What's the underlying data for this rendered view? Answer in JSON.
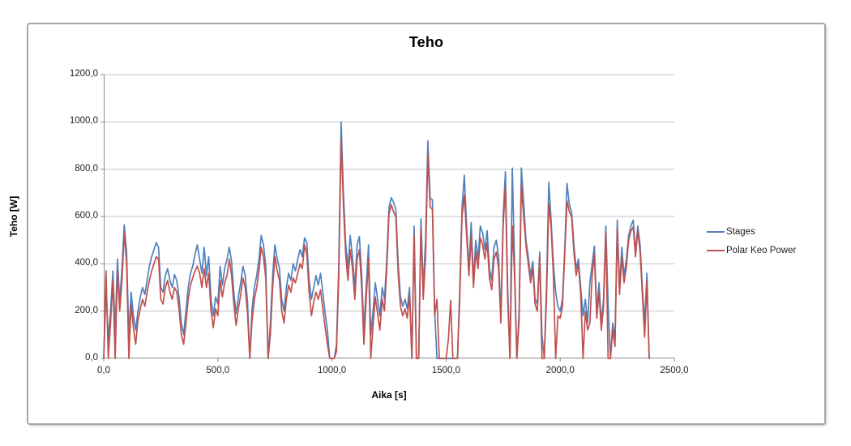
{
  "chart_data": {
    "type": "line",
    "title": "Teho",
    "xlabel": "Aika [s]",
    "ylabel": "Teho [W]",
    "xlim": [
      0,
      2500
    ],
    "ylim": [
      0,
      1200
    ],
    "grid": true,
    "legend_position": "right",
    "x_tick_labels": [
      "0,0",
      "500,0",
      "1000,0",
      "1500,0",
      "2000,0",
      "2500,0"
    ],
    "y_tick_labels": [
      "0,0",
      "200,0",
      "400,0",
      "600,0",
      "800,0",
      "1000,0",
      "1200,0"
    ],
    "x_start": 0,
    "x_step": 10,
    "series": [
      {
        "name": "Stages",
        "color": "#4F81BD",
        "values": [
          0,
          300,
          80,
          200,
          370,
          120,
          420,
          240,
          380,
          565,
          450,
          90,
          280,
          180,
          120,
          200,
          260,
          300,
          270,
          330,
          390,
          430,
          460,
          490,
          470,
          300,
          280,
          350,
          380,
          330,
          300,
          355,
          330,
          260,
          150,
          100,
          200,
          300,
          360,
          390,
          440,
          480,
          420,
          360,
          470,
          350,
          430,
          250,
          180,
          260,
          230,
          390,
          310,
          380,
          420,
          470,
          410,
          280,
          190,
          260,
          320,
          390,
          350,
          240,
          0,
          210,
          300,
          350,
          420,
          520,
          480,
          390,
          0,
          150,
          350,
          480,
          420,
          380,
          250,
          200,
          300,
          360,
          330,
          400,
          370,
          420,
          460,
          430,
          510,
          490,
          330,
          250,
          300,
          350,
          310,
          360,
          280,
          190,
          120,
          0,
          0,
          0,
          60,
          400,
          1000,
          700,
          490,
          380,
          520,
          430,
          300,
          480,
          515,
          360,
          120,
          300,
          480,
          100,
          200,
          320,
          250,
          180,
          300,
          250,
          420,
          640,
          680,
          660,
          630,
          400,
          260,
          220,
          250,
          210,
          300,
          0,
          560,
          0,
          0,
          590,
          300,
          500,
          920,
          680,
          670,
          200,
          0,
          0,
          0,
          0,
          0,
          0,
          0,
          0,
          0,
          0,
          300,
          640,
          775,
          560,
          380,
          575,
          330,
          500,
          420,
          560,
          530,
          460,
          540,
          380,
          330,
          470,
          500,
          430,
          180,
          600,
          790,
          300,
          0,
          805,
          400,
          0,
          200,
          805,
          660,
          500,
          430,
          350,
          410,
          250,
          230,
          450,
          100,
          0,
          300,
          745,
          590,
          400,
          280,
          220,
          200,
          250,
          460,
          740,
          650,
          620,
          480,
          380,
          420,
          300,
          180,
          250,
          150,
          320,
          400,
          475,
          200,
          320,
          150,
          250,
          560,
          230,
          0,
          150,
          80,
          585,
          300,
          470,
          350,
          420,
          520,
          560,
          585,
          450,
          560,
          480,
          300,
          150,
          360,
          0
        ]
      },
      {
        "name": "Polar Keo Power",
        "color": "#C0504D",
        "values": [
          0,
          370,
          0,
          150,
          330,
          0,
          370,
          200,
          330,
          530,
          400,
          0,
          230,
          130,
          60,
          160,
          210,
          250,
          220,
          280,
          330,
          370,
          400,
          430,
          420,
          250,
          230,
          300,
          330,
          280,
          250,
          300,
          280,
          210,
          100,
          60,
          150,
          250,
          310,
          340,
          370,
          390,
          360,
          300,
          380,
          300,
          360,
          200,
          130,
          210,
          180,
          330,
          260,
          320,
          350,
          420,
          350,
          230,
          140,
          210,
          270,
          340,
          300,
          190,
          0,
          160,
          250,
          300,
          370,
          470,
          430,
          340,
          0,
          100,
          300,
          430,
          370,
          330,
          200,
          150,
          250,
          310,
          280,
          340,
          320,
          360,
          400,
          380,
          480,
          440,
          280,
          180,
          240,
          280,
          250,
          290,
          210,
          130,
          60,
          0,
          0,
          0,
          30,
          350,
          930,
          650,
          440,
          330,
          460,
          380,
          250,
          420,
          460,
          300,
          60,
          250,
          420,
          0,
          140,
          260,
          190,
          120,
          250,
          200,
          380,
          610,
          650,
          620,
          600,
          360,
          220,
          180,
          210,
          170,
          270,
          0,
          520,
          0,
          0,
          550,
          250,
          430,
          865,
          640,
          630,
          180,
          250,
          0,
          0,
          0,
          0,
          80,
          245,
          0,
          0,
          0,
          260,
          600,
          690,
          520,
          350,
          520,
          300,
          450,
          380,
          510,
          480,
          420,
          490,
          340,
          290,
          420,
          450,
          380,
          150,
          560,
          730,
          250,
          0,
          560,
          350,
          0,
          160,
          735,
          600,
          480,
          400,
          320,
          380,
          230,
          200,
          430,
          0,
          0,
          250,
          655,
          560,
          350,
          0,
          180,
          170,
          220,
          440,
          665,
          620,
          600,
          450,
          350,
          400,
          270,
          0,
          200,
          120,
          150,
          350,
          440,
          170,
          280,
          120,
          220,
          535,
          0,
          0,
          120,
          50,
          545,
          270,
          430,
          320,
          390,
          500,
          540,
          555,
          430,
          540,
          450,
          270,
          90,
          330,
          0
        ]
      }
    ]
  },
  "colors": {
    "gridline": "#C3C3C3",
    "axis_line": "#8C8C8C",
    "frame_border": "#A6A6A6",
    "background": "#FFFFFF"
  },
  "legend": {
    "items": [
      {
        "label": "Stages",
        "color": "#4F81BD"
      },
      {
        "label": "Polar Keo Power",
        "color": "#C0504D"
      }
    ]
  }
}
